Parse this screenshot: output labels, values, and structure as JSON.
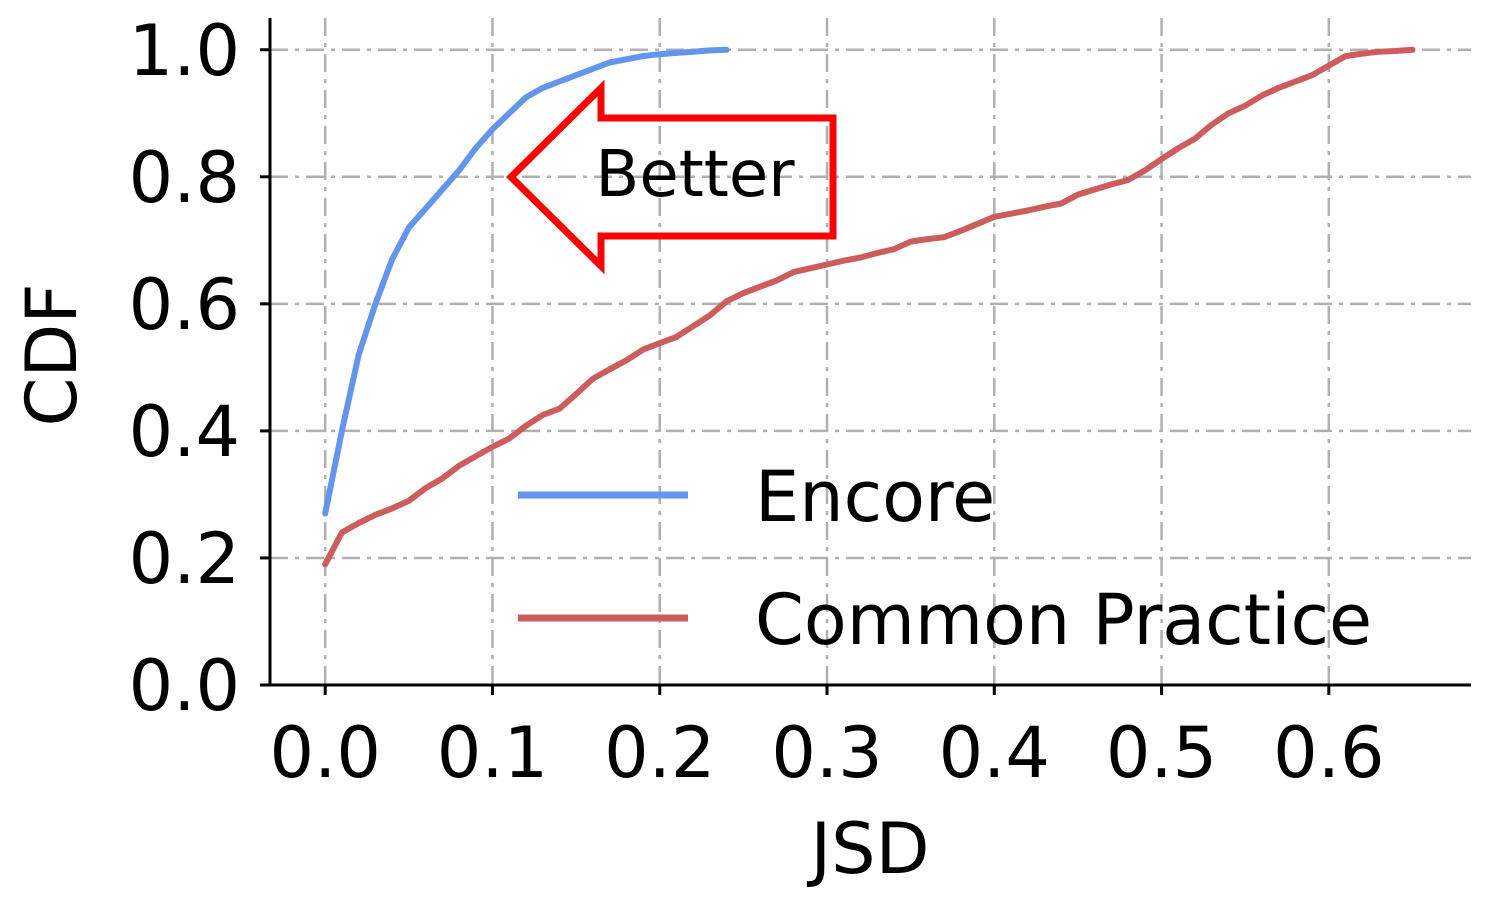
{
  "chart_data": {
    "type": "line",
    "xlabel": "JSD",
    "ylabel": "CDF",
    "xlim": [
      -0.033,
      0.685
    ],
    "ylim": [
      0.0,
      1.05
    ],
    "xticks": [
      "0.0",
      "0.1",
      "0.2",
      "0.3",
      "0.4",
      "0.5",
      "0.6"
    ],
    "yticks": [
      "0.0",
      "0.2",
      "0.4",
      "0.6",
      "0.8",
      "1.0"
    ],
    "grid": true,
    "legend_position": "lower-right",
    "series": [
      {
        "name": "Encore",
        "color": "#6495ED",
        "x": [
          0.0,
          0.01,
          0.02,
          0.03,
          0.04,
          0.05,
          0.06,
          0.07,
          0.08,
          0.09,
          0.1,
          0.11,
          0.12,
          0.13,
          0.14,
          0.15,
          0.16,
          0.17,
          0.18,
          0.19,
          0.2,
          0.21,
          0.22,
          0.23,
          0.24
        ],
        "y": [
          0.27,
          0.4,
          0.52,
          0.6,
          0.67,
          0.72,
          0.75,
          0.78,
          0.81,
          0.845,
          0.875,
          0.9,
          0.925,
          0.94,
          0.95,
          0.96,
          0.97,
          0.98,
          0.985,
          0.99,
          0.993,
          0.995,
          0.997,
          0.999,
          1.0
        ]
      },
      {
        "name": "Common Practice",
        "color": "#CD5C5C",
        "x": [
          0.0,
          0.01,
          0.02,
          0.03,
          0.04,
          0.05,
          0.06,
          0.07,
          0.08,
          0.09,
          0.1,
          0.11,
          0.12,
          0.13,
          0.14,
          0.15,
          0.16,
          0.17,
          0.18,
          0.19,
          0.2,
          0.21,
          0.22,
          0.23,
          0.24,
          0.25,
          0.26,
          0.27,
          0.28,
          0.29,
          0.3,
          0.31,
          0.32,
          0.33,
          0.34,
          0.35,
          0.36,
          0.37,
          0.38,
          0.39,
          0.4,
          0.41,
          0.42,
          0.43,
          0.44,
          0.45,
          0.46,
          0.47,
          0.48,
          0.49,
          0.5,
          0.51,
          0.52,
          0.53,
          0.54,
          0.55,
          0.56,
          0.57,
          0.58,
          0.59,
          0.6,
          0.61,
          0.62,
          0.63,
          0.64,
          0.65
        ],
        "y": [
          0.19,
          0.24,
          0.255,
          0.268,
          0.278,
          0.29,
          0.31,
          0.325,
          0.345,
          0.36,
          0.375,
          0.388,
          0.408,
          0.425,
          0.435,
          0.458,
          0.482,
          0.497,
          0.511,
          0.528,
          0.538,
          0.548,
          0.565,
          0.582,
          0.604,
          0.617,
          0.627,
          0.637,
          0.65,
          0.656,
          0.662,
          0.668,
          0.673,
          0.68,
          0.686,
          0.698,
          0.702,
          0.705,
          0.715,
          0.726,
          0.737,
          0.742,
          0.747,
          0.753,
          0.758,
          0.772,
          0.78,
          0.788,
          0.795,
          0.81,
          0.828,
          0.845,
          0.86,
          0.882,
          0.9,
          0.912,
          0.928,
          0.94,
          0.95,
          0.96,
          0.975,
          0.99,
          0.994,
          0.997,
          0.998,
          1.0
        ]
      }
    ],
    "annotations": [
      {
        "text": "Better",
        "shape": "left-pointing arrow",
        "color": "#FF0000"
      }
    ]
  }
}
